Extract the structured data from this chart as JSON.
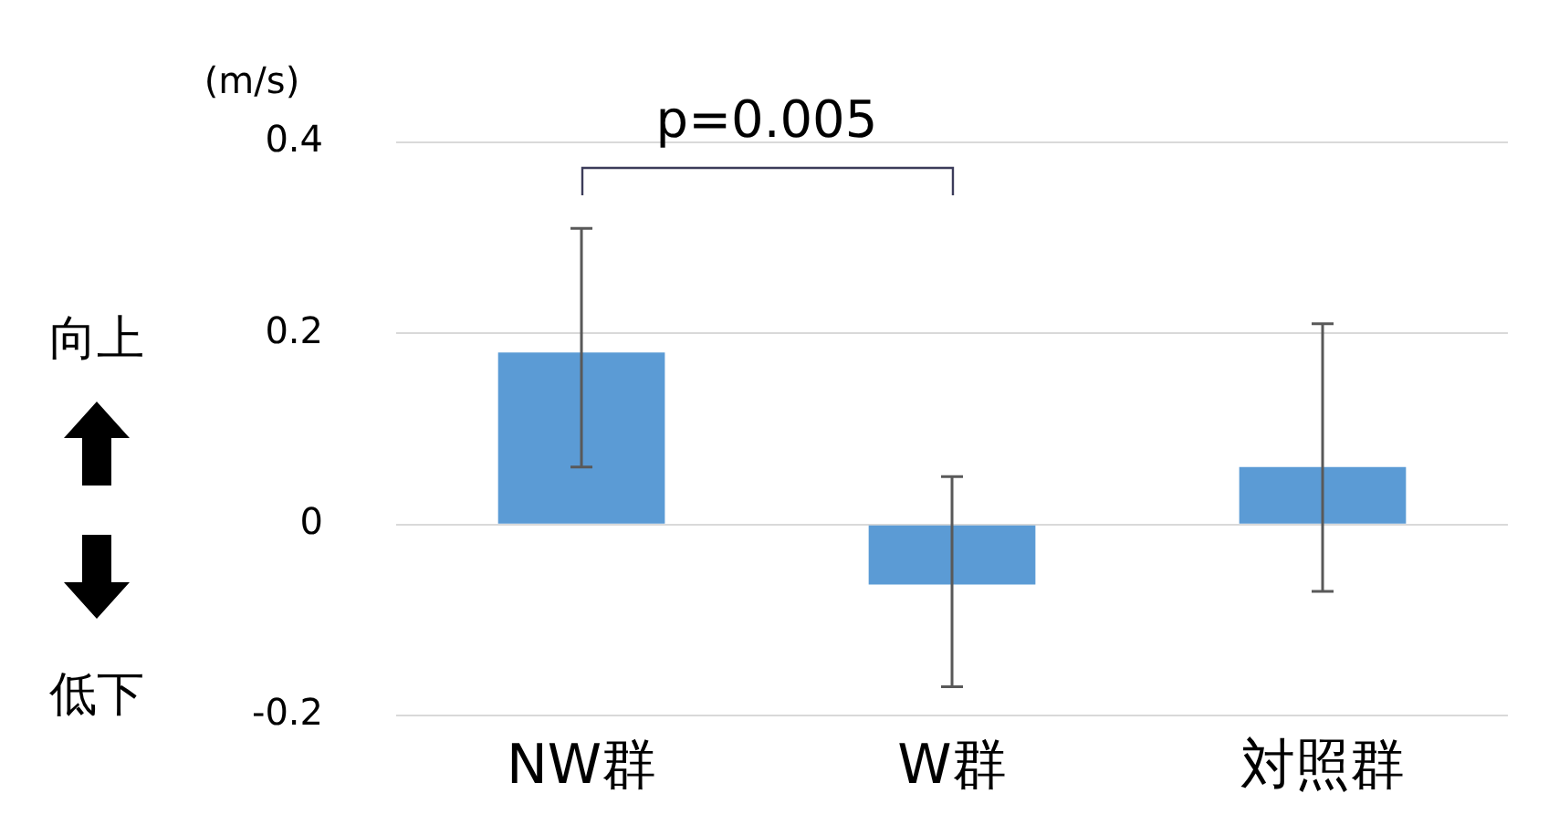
{
  "chart_data": {
    "type": "bar",
    "ylabel": "(m/s)",
    "categories": [
      "NW群",
      "W群",
      "対照群"
    ],
    "values": [
      0.18,
      -0.063,
      0.06
    ],
    "color": "#5b9bd5",
    "errors": [
      [
        0.06,
        0.31
      ],
      [
        -0.17,
        0.05
      ],
      [
        -0.07,
        0.21
      ]
    ],
    "ylim": [
      -0.2,
      0.4
    ],
    "yticks": [
      -0.2,
      0,
      0.2,
      0.4
    ],
    "grid": "y",
    "annotations": [
      "p=0.005",
      "向上",
      "低下"
    ]
  }
}
